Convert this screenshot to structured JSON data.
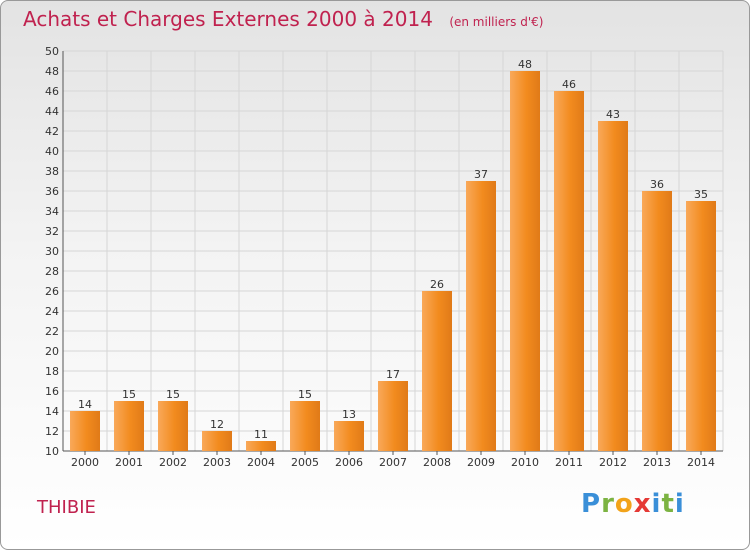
{
  "chart_data": {
    "type": "bar",
    "title": "Achats et Charges Externes 2000 à 2014",
    "subtitle": "(en milliers d'€)",
    "xlabel": "",
    "ylabel": "",
    "categories": [
      "2000",
      "2001",
      "2002",
      "2003",
      "2004",
      "2005",
      "2006",
      "2007",
      "2008",
      "2009",
      "2010",
      "2011",
      "2012",
      "2013",
      "2014"
    ],
    "values": [
      14,
      15,
      15,
      12,
      11,
      15,
      13,
      17,
      26,
      37,
      48,
      46,
      43,
      36,
      35
    ],
    "ylim": [
      10,
      50
    ],
    "yticks": [
      10,
      12,
      14,
      16,
      18,
      20,
      22,
      24,
      26,
      28,
      30,
      32,
      34,
      36,
      38,
      40,
      42,
      44,
      46,
      48,
      50
    ],
    "grid": true,
    "bar_color": "#f28b1e",
    "bar_color_light": "#f9a95a",
    "bar_color_dark": "#d9761a"
  },
  "footer": {
    "place": "THIBIE",
    "logo_text": "Proxiti"
  },
  "colors": {
    "title": "#c0224f",
    "grid": "#d6d6d6"
  }
}
